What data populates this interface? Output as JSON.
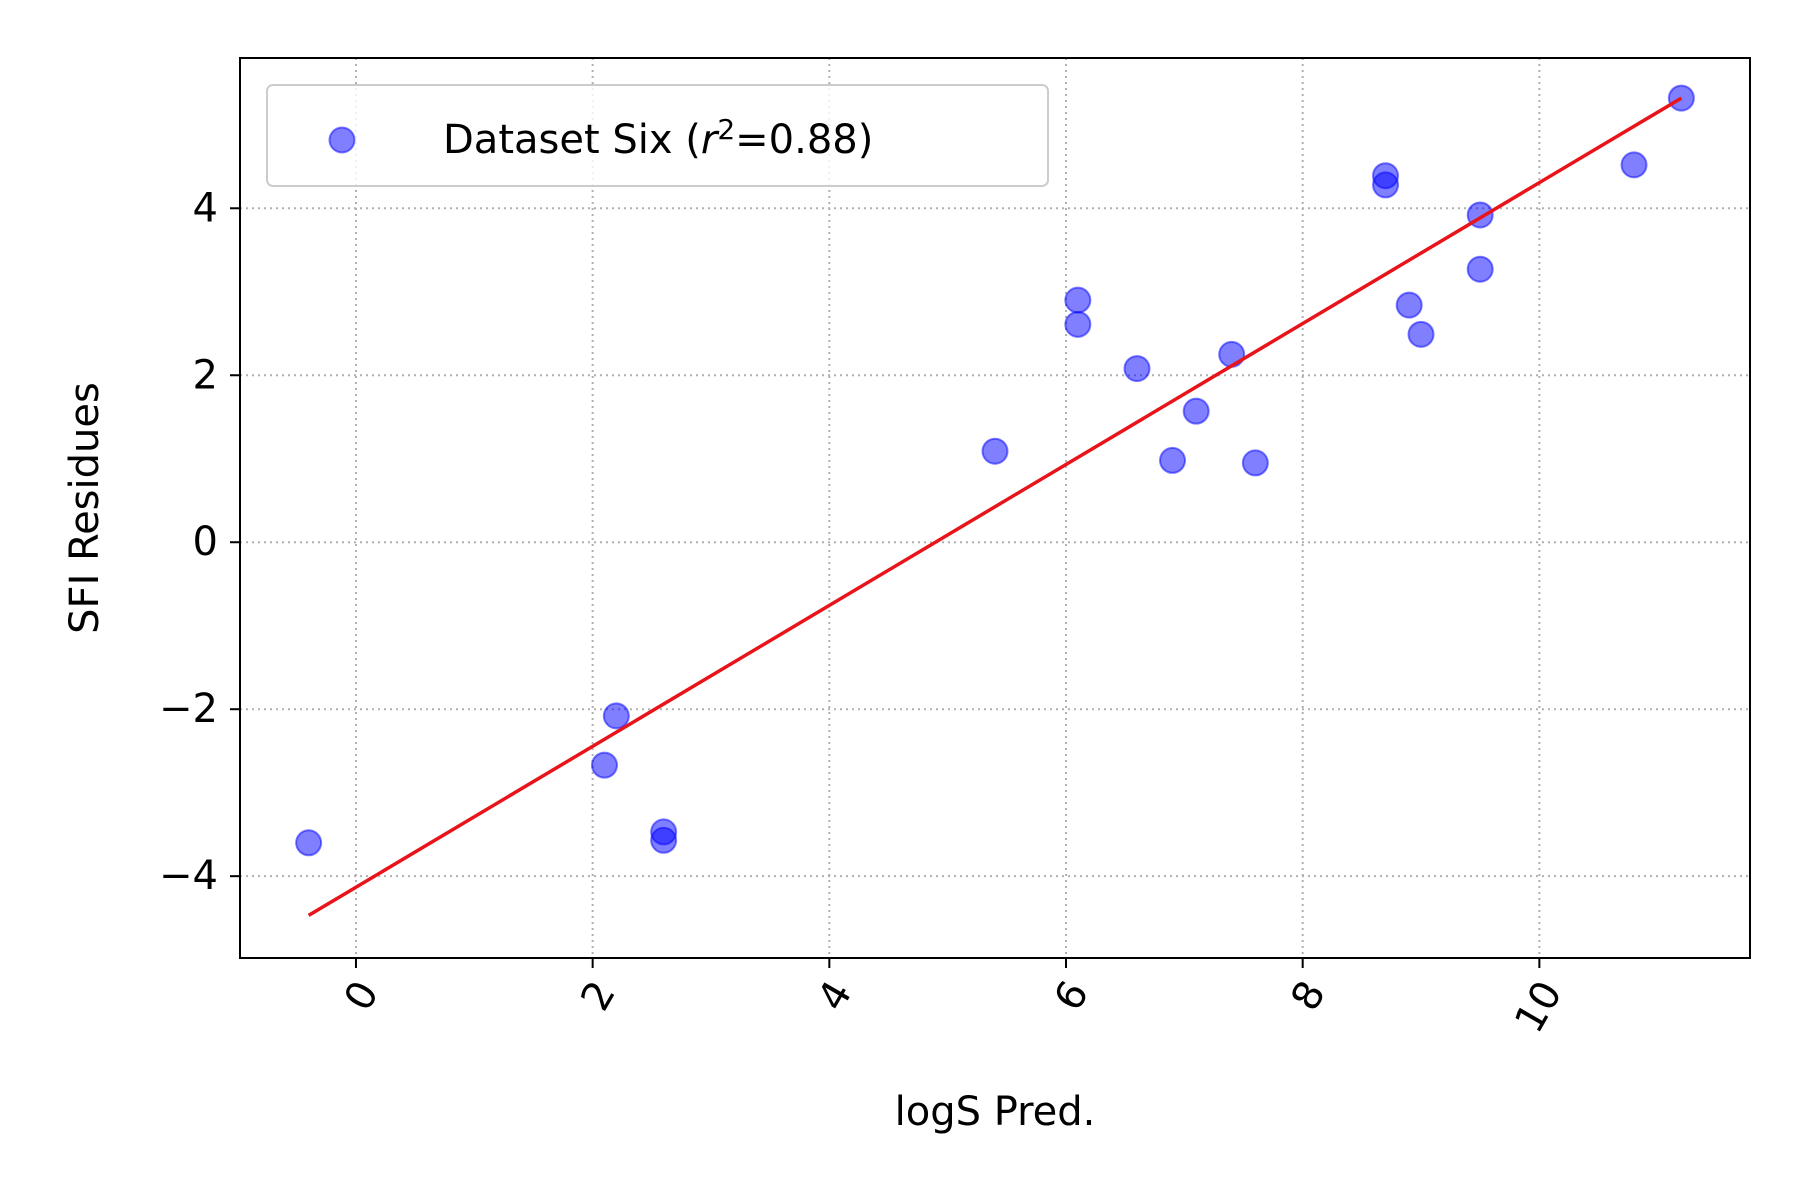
{
  "chart_data": {
    "type": "scatter",
    "xlabel": "logS Pred.",
    "ylabel": "SFI Residues",
    "xlim": [
      -0.98,
      11.78
    ],
    "ylim": [
      -4.98,
      5.8
    ],
    "x_ticks": [
      0,
      2,
      4,
      6,
      8,
      10
    ],
    "x_tick_labels": [
      "0",
      "2",
      "4",
      "6",
      "8",
      "10"
    ],
    "y_ticks": [
      -4,
      -2,
      0,
      2,
      4
    ],
    "y_tick_labels": [
      "−4",
      "−2",
      "0",
      "2",
      "4"
    ],
    "x_tick_rotation_deg": 60,
    "grid": true,
    "legend_position": "top-left",
    "series": [
      {
        "name": "Dataset Six",
        "legend_stat": "=0.88)",
        "type": "scatter",
        "color": "#0000ff",
        "x": [
          -0.4,
          2.1,
          2.2,
          2.6,
          2.6,
          5.4,
          6.1,
          6.1,
          6.6,
          6.9,
          7.1,
          7.4,
          7.6,
          8.7,
          8.7,
          8.9,
          9.0,
          9.5,
          9.5,
          10.8,
          11.2
        ],
        "y": [
          -3.6,
          -2.67,
          -2.08,
          -3.47,
          -3.57,
          1.09,
          2.9,
          2.61,
          2.08,
          0.98,
          1.57,
          2.25,
          0.95,
          4.39,
          4.28,
          2.84,
          2.49,
          3.92,
          3.27,
          4.52,
          5.32
        ]
      },
      {
        "name": "fit",
        "type": "line",
        "color": "#e8141a",
        "x": [
          -0.4,
          11.2
        ],
        "y": [
          -4.47,
          5.32
        ]
      }
    ]
  }
}
